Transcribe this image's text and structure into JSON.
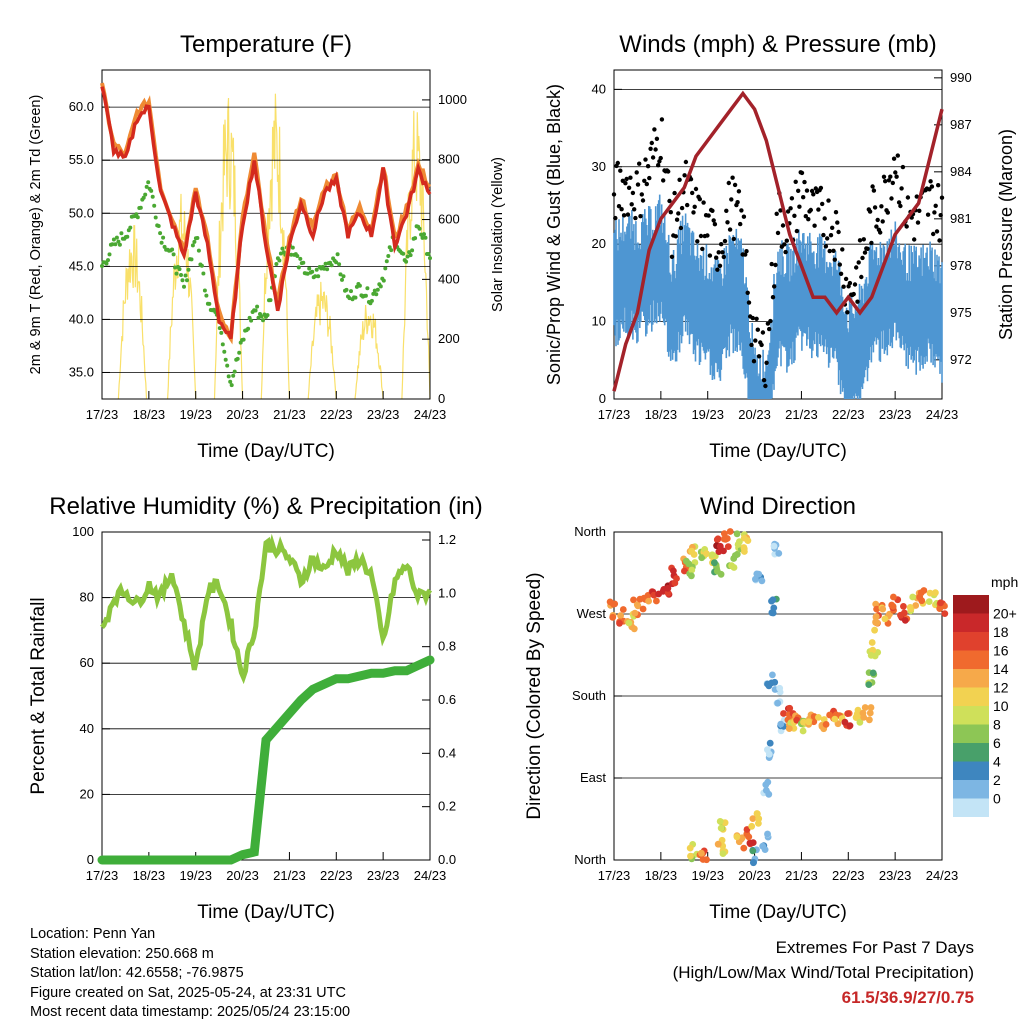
{
  "colors": {
    "temp_2m": "#d42a1e",
    "temp_9m": "#ef8a33",
    "dewpoint": "#4aa832",
    "solar": "#f9e06a",
    "wind": "#4e96d2",
    "gust": "#000000",
    "pressure": "#a3222a",
    "rh": "#8cc63f",
    "rain": "#3fae3a"
  },
  "x_ticks": [
    "17/23",
    "18/23",
    "19/23",
    "20/23",
    "21/23",
    "22/23",
    "23/23",
    "24/23"
  ],
  "x_label": "Time (Day/UTC)",
  "panels": {
    "temperature": {
      "title": "Temperature (F)",
      "ylabel_left": "2m & 9m T (Red, Orange) & 2m Td (Green)",
      "ylabel_right": "Solar Insolation (Yellow)",
      "yticks_left": [
        "35.0",
        "40.0",
        "45.0",
        "50.0",
        "55.0",
        "60.0"
      ],
      "yticks_right": [
        "0",
        "200",
        "400",
        "600",
        "800",
        "1000"
      ]
    },
    "winds": {
      "title": "Winds (mph) & Pressure (mb)",
      "ylabel_left": "Sonic/Prop Wind & Gust (Blue, Black)",
      "ylabel_right": "Station Pressure (Maroon)",
      "yticks_left": [
        "0",
        "10",
        "20",
        "30",
        "40"
      ],
      "yticks_right": [
        "972",
        "975",
        "978",
        "981",
        "984",
        "987",
        "990"
      ]
    },
    "humidity": {
      "title": "Relative Humidity (%) & Precipitation (in)",
      "ylabel_left": "Percent & Total Rainfall",
      "yticks_left": [
        "0",
        "20",
        "40",
        "60",
        "80",
        "100"
      ],
      "yticks_right": [
        "0.0",
        "0.2",
        "0.4",
        "0.6",
        "0.8",
        "1.0",
        "1.2"
      ]
    },
    "direction": {
      "title": "Wind Direction",
      "ylabel_left": "Direction (Colored By Speed)",
      "yticks_left": [
        "North",
        "East",
        "South",
        "West",
        "North"
      ],
      "legend_title": "mph",
      "legend_labels": [
        "20+",
        "18",
        "16",
        "14",
        "12",
        "10",
        "8",
        "6",
        "4",
        "2",
        "0"
      ],
      "legend_colors": [
        "#9e1a1d",
        "#c9282a",
        "#e0412d",
        "#f06a2e",
        "#f6a94a",
        "#f2d251",
        "#cfe05a",
        "#8dc655",
        "#48a06a",
        "#3e86bf",
        "#7db6e3",
        "#c3e4f6"
      ]
    }
  },
  "info": {
    "location": "Location: Penn Yan",
    "elevation": "Station elevation: 250.668 m",
    "latlon": "Station lat/lon: 42.6558; -76.9875",
    "created": "Figure created on Sat, 2025-05-24, at 23:31 UTC",
    "timestamp": "Most recent data timestamp: 2025/05/24 23:15:00"
  },
  "extremes": {
    "title": "Extremes For Past 7 Days",
    "subtitle": "(High/Low/Max Wind/Total Precipitation)",
    "values": "61.5/36.9/27/0.75"
  },
  "chart_data": [
    {
      "type": "line",
      "title": "Temperature (F)",
      "xlabel": "Time (Day/UTC)",
      "x": [
        0,
        0.25,
        0.5,
        0.75,
        1,
        1.25,
        1.5,
        1.75,
        2,
        2.25,
        2.5,
        2.75,
        3,
        3.25,
        3.5,
        3.75,
        4,
        4.25,
        4.5,
        4.75,
        5,
        5.25,
        5.5,
        5.75,
        6,
        6.25,
        6.5,
        6.75,
        7
      ],
      "ylim": [
        32.5,
        63.5
      ],
      "y2lim": [
        0,
        1100
      ],
      "series": [
        {
          "name": "2m T (Red)",
          "values": [
            62,
            56,
            55,
            59,
            60,
            52,
            49,
            46,
            52,
            47,
            40,
            38,
            49,
            55,
            47,
            41,
            47,
            51,
            48,
            52,
            53,
            48,
            50,
            48,
            54,
            47,
            50,
            54,
            52
          ]
        },
        {
          "name": "9m T (Orange)",
          "values": [
            62,
            56.5,
            55.5,
            59.5,
            60.5,
            52.5,
            49.5,
            46.5,
            52.5,
            47.5,
            40.5,
            38.5,
            49.5,
            55.5,
            47.5,
            41.5,
            47.5,
            51.5,
            48.5,
            52.5,
            53.5,
            48.5,
            50.5,
            48.5,
            54.5,
            47.5,
            50.5,
            54.5,
            52.5
          ]
        },
        {
          "name": "2m Td (Green)",
          "values": [
            45,
            47,
            48,
            50,
            53,
            48,
            46,
            43,
            48,
            42,
            40,
            34,
            38,
            41,
            40,
            46,
            47,
            45,
            44,
            45,
            46,
            42,
            43,
            42,
            44,
            48,
            45,
            49,
            46
          ]
        },
        {
          "name": "Solar Insolation (Yellow)",
          "axis": "right",
          "peaks": [
            {
              "x": 0.65,
              "y": 600
            },
            {
              "x": 1.7,
              "y": 700
            },
            {
              "x": 2.7,
              "y": 1050
            },
            {
              "x": 3.7,
              "y": 1050
            },
            {
              "x": 4.7,
              "y": 400
            },
            {
              "x": 5.7,
              "y": 350
            },
            {
              "x": 6.7,
              "y": 1000
            }
          ]
        }
      ]
    },
    {
      "type": "line",
      "title": "Winds (mph) & Pressure (mb)",
      "xlabel": "Time (Day/UTC)",
      "x": [
        0,
        0.25,
        0.5,
        0.75,
        1,
        1.25,
        1.5,
        1.75,
        2,
        2.25,
        2.5,
        2.75,
        3,
        3.25,
        3.5,
        3.75,
        4,
        4.25,
        4.5,
        4.75,
        5,
        5.25,
        5.5,
        5.75,
        6,
        6.25,
        6.5,
        6.75,
        7
      ],
      "ylim": [
        0,
        42.5
      ],
      "y2lim": [
        969.5,
        990.5
      ],
      "series": [
        {
          "name": "Sonic/Prop Wind (Blue)",
          "values": [
            18,
            20,
            19,
            20,
            22,
            14,
            20,
            16,
            15,
            13,
            18,
            16,
            2,
            2,
            16,
            15,
            18,
            17,
            16,
            15,
            8,
            10,
            16,
            17,
            18,
            15,
            15,
            16,
            14
          ]
        },
        {
          "name": "Gust (Black)",
          "values": [
            25,
            26,
            25,
            28,
            33,
            20,
            26,
            22,
            20,
            18,
            24,
            20,
            5,
            4,
            22,
            20,
            26,
            22,
            22,
            20,
            12,
            15,
            22,
            24,
            30,
            22,
            22,
            24,
            22
          ]
        },
        {
          "name": "Station Pressure (Maroon)",
          "axis": "right",
          "values": [
            970,
            973,
            975,
            979,
            981,
            982,
            983,
            985,
            986,
            987,
            988,
            989,
            988,
            986,
            983,
            980,
            978,
            976,
            976,
            975,
            976,
            975,
            976,
            978,
            980,
            981,
            982,
            985,
            988
          ]
        }
      ]
    },
    {
      "type": "line",
      "title": "Relative Humidity (%) & Precipitation (in)",
      "xlabel": "Time (Day/UTC)",
      "x": [
        0,
        0.25,
        0.5,
        0.75,
        1,
        1.25,
        1.5,
        1.75,
        2,
        2.25,
        2.5,
        2.75,
        3,
        3.25,
        3.5,
        3.75,
        4,
        4.25,
        4.5,
        4.75,
        5,
        5.25,
        5.5,
        5.75,
        6,
        6.25,
        6.5,
        6.75,
        7
      ],
      "ylim": [
        0,
        100
      ],
      "y2lim": [
        0,
        1.23
      ],
      "series": [
        {
          "name": "Relative Humidity",
          "values": [
            70,
            80,
            82,
            78,
            84,
            80,
            88,
            72,
            58,
            82,
            84,
            72,
            56,
            70,
            96,
            95,
            92,
            85,
            92,
            88,
            95,
            88,
            92,
            87,
            66,
            85,
            90,
            80,
            82
          ]
        },
        {
          "name": "Total Precipitation",
          "axis": "right",
          "values": [
            0,
            0,
            0,
            0,
            0,
            0,
            0,
            0,
            0,
            0,
            0,
            0,
            0.02,
            0.03,
            0.45,
            0.5,
            0.55,
            0.6,
            0.64,
            0.66,
            0.68,
            0.68,
            0.69,
            0.7,
            0.7,
            0.71,
            0.71,
            0.73,
            0.75
          ]
        }
      ]
    },
    {
      "type": "scatter",
      "title": "Wind Direction",
      "xlabel": "Time (Day/UTC)",
      "ylim": [
        0,
        360
      ],
      "points": [
        {
          "x": 0,
          "y": 275,
          "s": 14
        },
        {
          "x": 0.2,
          "y": 268,
          "s": 16
        },
        {
          "x": 0.35,
          "y": 262,
          "s": 12
        },
        {
          "x": 0.5,
          "y": 278,
          "s": 15
        },
        {
          "x": 0.7,
          "y": 282,
          "s": 16
        },
        {
          "x": 0.9,
          "y": 290,
          "s": 18
        },
        {
          "x": 1.1,
          "y": 298,
          "s": 20
        },
        {
          "x": 1.3,
          "y": 312,
          "s": 18
        },
        {
          "x": 1.5,
          "y": 325,
          "s": 16
        },
        {
          "x": 1.7,
          "y": 335,
          "s": 12
        },
        {
          "x": 1.9,
          "y": 340,
          "s": 10
        },
        {
          "x": 2.1,
          "y": 330,
          "s": 12
        },
        {
          "x": 2.25,
          "y": 345,
          "s": 20
        },
        {
          "x": 2.4,
          "y": 352,
          "s": 16
        },
        {
          "x": 2.55,
          "y": 330,
          "s": 8
        },
        {
          "x": 2.7,
          "y": 350,
          "s": 10
        },
        {
          "x": 2.85,
          "y": 345,
          "s": 12
        },
        {
          "x": 1.6,
          "y": 320,
          "s": 8
        },
        {
          "x": 2.2,
          "y": 320,
          "s": 6
        },
        {
          "x": 1.7,
          "y": 10,
          "s": 10
        },
        {
          "x": 1.9,
          "y": 2,
          "s": 16
        },
        {
          "x": 2.3,
          "y": 15,
          "s": 12
        },
        {
          "x": 2.3,
          "y": 40,
          "s": 10
        },
        {
          "x": 2.7,
          "y": 20,
          "s": 14
        },
        {
          "x": 2.9,
          "y": 25,
          "s": 18
        },
        {
          "x": 3.0,
          "y": 45,
          "s": 12
        },
        {
          "x": 3.05,
          "y": 5,
          "s": 4
        },
        {
          "x": 3.2,
          "y": 20,
          "s": 2
        },
        {
          "x": 3.25,
          "y": 80,
          "s": 2
        },
        {
          "x": 3.3,
          "y": 120,
          "s": 2
        },
        {
          "x": 3.35,
          "y": 200,
          "s": 2
        },
        {
          "x": 3.4,
          "y": 280,
          "s": 4
        },
        {
          "x": 3.45,
          "y": 340,
          "s": 0
        },
        {
          "x": 3.1,
          "y": 310,
          "s": 2
        },
        {
          "x": 3.5,
          "y": 180,
          "s": 2
        },
        {
          "x": 3.6,
          "y": 150,
          "s": 2
        },
        {
          "x": 3.7,
          "y": 160,
          "s": 18
        },
        {
          "x": 3.8,
          "y": 150,
          "s": 12
        },
        {
          "x": 3.9,
          "y": 155,
          "s": 16
        },
        {
          "x": 4.0,
          "y": 150,
          "s": 10
        },
        {
          "x": 4.2,
          "y": 155,
          "s": 14
        },
        {
          "x": 4.4,
          "y": 152,
          "s": 12
        },
        {
          "x": 4.6,
          "y": 155,
          "s": 16
        },
        {
          "x": 4.8,
          "y": 158,
          "s": 14
        },
        {
          "x": 5.0,
          "y": 155,
          "s": 18
        },
        {
          "x": 5.2,
          "y": 156,
          "s": 12
        },
        {
          "x": 5.4,
          "y": 160,
          "s": 14
        },
        {
          "x": 5.5,
          "y": 200,
          "s": 8
        },
        {
          "x": 5.55,
          "y": 230,
          "s": 10
        },
        {
          "x": 5.6,
          "y": 260,
          "s": 14
        },
        {
          "x": 5.65,
          "y": 275,
          "s": 16
        },
        {
          "x": 5.8,
          "y": 268,
          "s": 14
        },
        {
          "x": 6.0,
          "y": 280,
          "s": 16
        },
        {
          "x": 6.2,
          "y": 270,
          "s": 18
        },
        {
          "x": 6.4,
          "y": 282,
          "s": 12
        },
        {
          "x": 6.6,
          "y": 290,
          "s": 14
        },
        {
          "x": 6.8,
          "y": 285,
          "s": 10
        },
        {
          "x": 7.0,
          "y": 278,
          "s": 16
        }
      ]
    }
  ]
}
